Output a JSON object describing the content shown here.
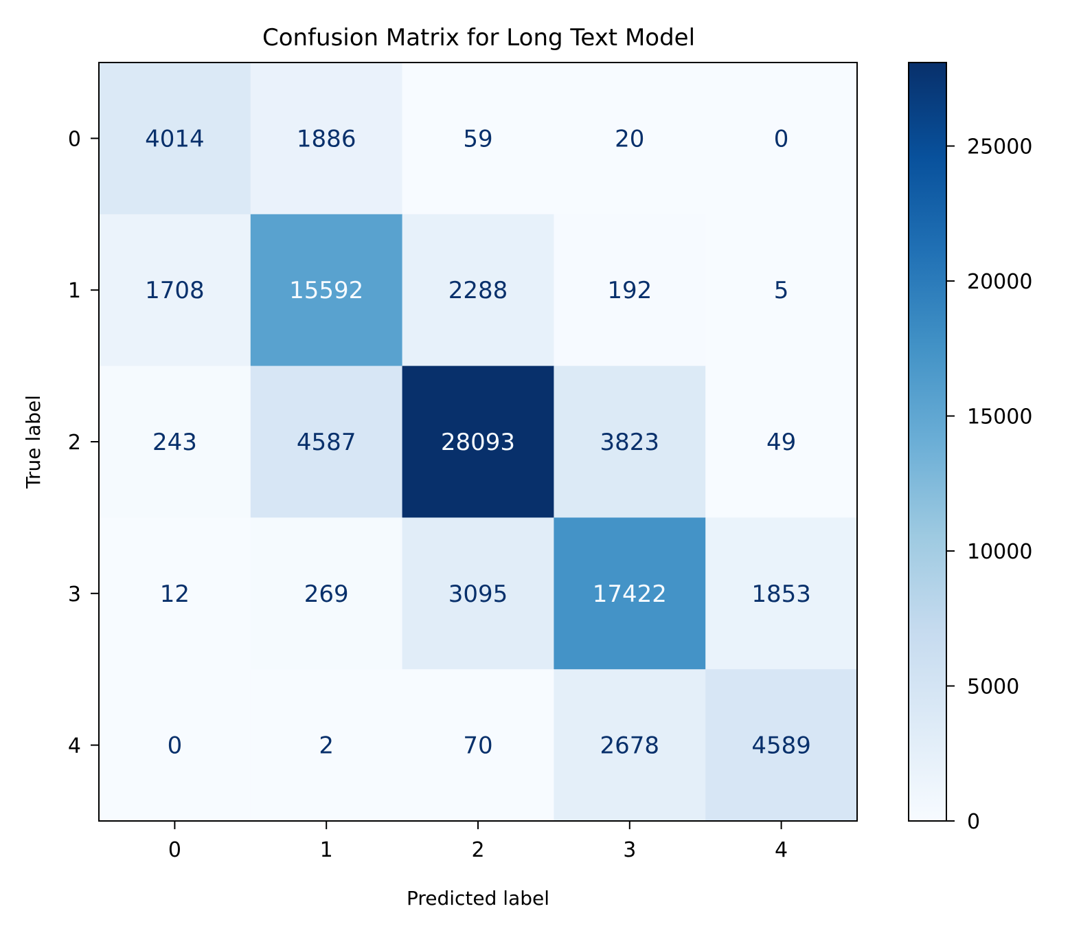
{
  "chart_data": {
    "type": "heatmap",
    "title": "Confusion Matrix for Long Text Model",
    "xlabel": "Predicted label",
    "ylabel": "True label",
    "x_categories": [
      "0",
      "1",
      "2",
      "3",
      "4"
    ],
    "y_categories": [
      "0",
      "1",
      "2",
      "3",
      "4"
    ],
    "matrix": [
      [
        4014,
        1886,
        59,
        20,
        0
      ],
      [
        1708,
        15592,
        2288,
        192,
        5
      ],
      [
        243,
        4587,
        28093,
        3823,
        49
      ],
      [
        12,
        269,
        3095,
        17422,
        1853
      ],
      [
        0,
        2,
        70,
        2678,
        4589
      ]
    ],
    "colormap": "Blues",
    "colorbar": {
      "vmin": 0,
      "vmax": 28093,
      "ticks": [
        0,
        5000,
        10000,
        15000,
        20000,
        25000
      ],
      "tick_labels": [
        "0",
        "5000",
        "10000",
        "15000",
        "20000",
        "25000"
      ]
    },
    "text_colors": {
      "dark": "#08306b",
      "light": "#f7fbff"
    },
    "grid": false
  }
}
